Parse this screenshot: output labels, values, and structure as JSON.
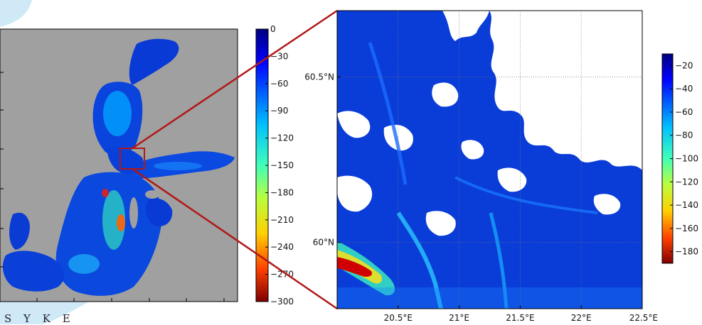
{
  "brand": {
    "text": "S Y K E"
  },
  "chart_data": [
    {
      "type": "heatmap",
      "panel": "overview",
      "title": "",
      "colorbar": {
        "ticks": [
          "0",
          "−30",
          "−60",
          "−90",
          "−120",
          "−150",
          "−180",
          "−210",
          "−240",
          "−270",
          "−300"
        ],
        "range": [
          -300,
          0
        ],
        "colormap": "jet"
      },
      "zoom_box": "red"
    },
    {
      "type": "heatmap",
      "panel": "zoom",
      "title": "",
      "x_ticks": [
        "20.5°E",
        "21°E",
        "21.5°E",
        "22°E",
        "22.5°E"
      ],
      "y_ticks": [
        "60.5°N",
        "60°N"
      ],
      "xlim": [
        20.0,
        22.5
      ],
      "ylim": [
        59.8,
        60.7
      ],
      "grid": true,
      "colorbar": {
        "ticks": [
          "−20",
          "−40",
          "−60",
          "−80",
          "−100",
          "−120",
          "−140",
          "−160",
          "−180"
        ],
        "range": [
          -190,
          -10
        ],
        "colormap": "jet"
      }
    }
  ],
  "colors": {
    "land_overview": "#a0a0a0",
    "land_zoom": "#ffffff",
    "water_deep": "#0a3cd8",
    "connector": "#b01818"
  }
}
